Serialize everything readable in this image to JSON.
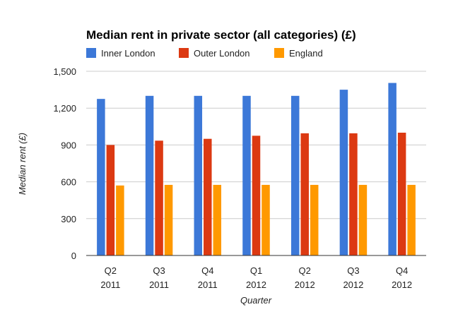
{
  "chart_data": {
    "type": "bar",
    "title": "Median rent in private sector (all categories) (£)",
    "xlabel": "Quarter",
    "ylabel": "Median rent (£)",
    "ylim": [
      0,
      1500
    ],
    "yticks": [
      0,
      300,
      600,
      900,
      1200,
      1500
    ],
    "ytick_labels": [
      "0",
      "300",
      "600",
      "900",
      "1,200",
      "1,500"
    ],
    "grid": true,
    "legend_position": "top-left",
    "categories": [
      {
        "q": "Q2",
        "year": "2011"
      },
      {
        "q": "Q3",
        "year": "2011"
      },
      {
        "q": "Q4",
        "year": "2011"
      },
      {
        "q": "Q1",
        "year": "2012"
      },
      {
        "q": "Q2",
        "year": "2012"
      },
      {
        "q": "Q3",
        "year": "2012"
      },
      {
        "q": "Q4",
        "year": "2012"
      }
    ],
    "series": [
      {
        "name": "Inner London",
        "color": "#3c78d8",
        "values": [
          1275,
          1300,
          1300,
          1300,
          1300,
          1350,
          1405
        ]
      },
      {
        "name": "Outer London",
        "color": "#dc3912",
        "values": [
          900,
          935,
          950,
          975,
          995,
          995,
          1000
        ]
      },
      {
        "name": "England",
        "color": "#ff9900",
        "values": [
          570,
          575,
          575,
          575,
          575,
          575,
          575
        ]
      }
    ]
  }
}
